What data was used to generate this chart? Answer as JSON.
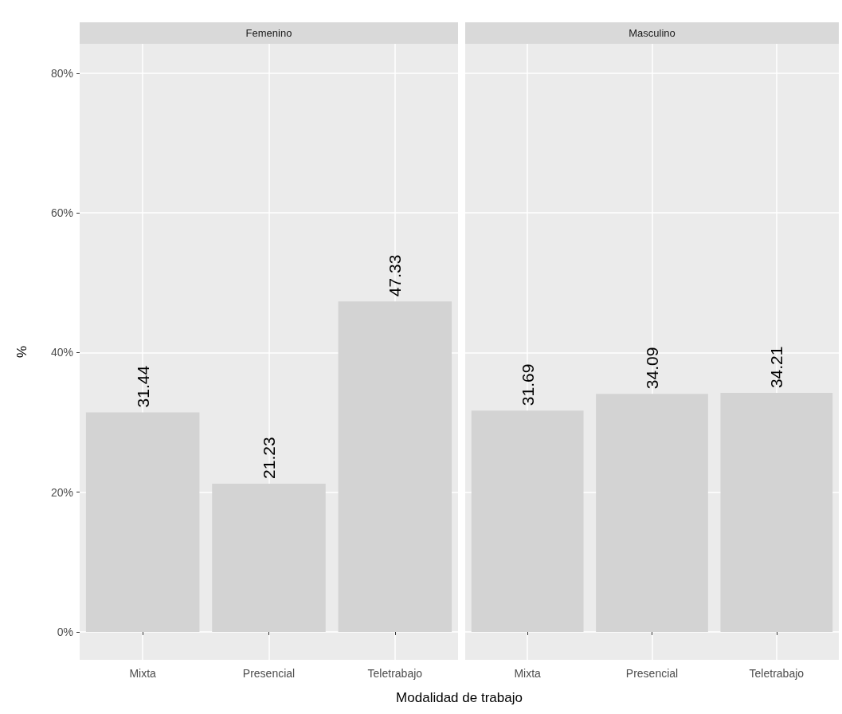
{
  "chart_data": [
    {
      "type": "bar",
      "title": "Femenino",
      "ylabel": "%",
      "xlabel": "Modalidad de trabajo",
      "categories": [
        "Mixta",
        "Presencial",
        "Teletrabajo"
      ],
      "values": [
        31.44,
        21.23,
        47.33
      ],
      "color": "#d3d3d3",
      "ylim": [
        -4,
        84.2
      ],
      "yticks": [
        {
          "value": 0,
          "label": "0%"
        },
        {
          "value": 20,
          "label": "20%"
        },
        {
          "value": 40,
          "label": "40%"
        },
        {
          "value": 60,
          "label": "60%"
        },
        {
          "value": 80,
          "label": "80%"
        }
      ],
      "grid": true,
      "data_labels": true
    },
    {
      "type": "bar",
      "title": "Masculino",
      "categories": [
        "Mixta",
        "Presencial",
        "Teletrabajo"
      ],
      "values": [
        31.69,
        34.09,
        34.21
      ],
      "color": "#d3d3d3",
      "ylim": [
        -4,
        84.2
      ],
      "yticks": [
        0,
        20,
        40,
        60,
        80
      ],
      "grid": true,
      "data_labels": true,
      "tick_labels": "x"
    }
  ]
}
